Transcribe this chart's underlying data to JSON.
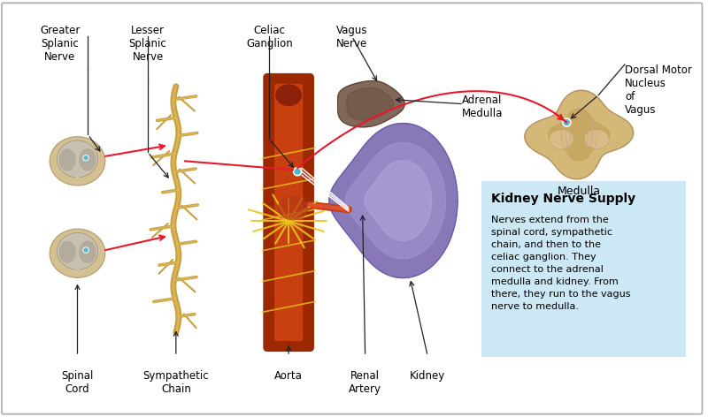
{
  "figure_bg": "#ffffff",
  "border_color": "#cccccc",
  "title": "Kidney Nerve Supply",
  "description": "Nerves extend from the\nspinal cord, sympathetic\nchain, and then to the\nceliac ganglion. They\nconnect to the adrenal\nmedulla and kidney. From\nthere, they run to the vagus\nnerve to medulla.",
  "info_box_bg": "#cce8f4",
  "info_box_border": "#cce8f4",
  "labels": {
    "greater_splanic": "Greater\nSplanic\nNerve",
    "lesser_splanic": "Lesser\nSplanic\nNerve",
    "celiac_ganglion": "Celiac\nGanglion",
    "vagus_nerve": "Vagus\nNerve",
    "adrenal_medulla": "Adrenal\nMedulla",
    "dorsal_motor": "Dorsal Motor\nNucleus\nof\nVagus",
    "medulla": "Medulla",
    "spinal_cord": "Spinal\nCord",
    "sympathetic_chain": "Sympathetic\nChain",
    "aorta": "Aorta",
    "renal_artery": "Renal\nArtery",
    "kidney": "Kidney"
  },
  "red_line_color": "#e8192c",
  "arrow_color": "#222222",
  "sc_outer_color": "#d4c090",
  "sc_inner_color": "#c8c0b0",
  "sc_grey_color": "#b0a898",
  "sc_dot_color": "#5abcd0",
  "sympathetic_chain_color": "#c8a040",
  "sympathetic_chain_light": "#e8c870",
  "aorta_color_dark": "#9c2800",
  "aorta_color_mid": "#c84010",
  "aorta_color_yellow": "#e8c820",
  "kidney_color_main": "#8878b8",
  "kidney_color_light": "#a090cc",
  "kidney_hilight": "#c0b0e0",
  "adrenal_color": "#7a6050",
  "adrenal_dark": "#5a4030",
  "medulla_outer": "#d4b878",
  "medulla_inner": "#c8a860",
  "medulla_wings": "#ddc090",
  "medulla_detail": "#c8a890",
  "ganglion_dot": "#50b8c8",
  "label_fontsize": 8.5,
  "title_fontsize": 10
}
